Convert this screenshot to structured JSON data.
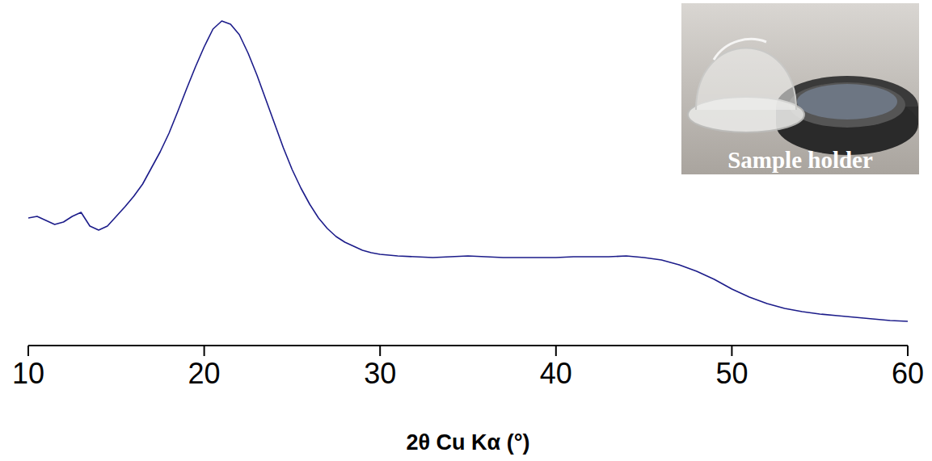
{
  "chart_data": {
    "type": "line",
    "xlabel": "2θ Cu Kα (°)",
    "annotations": [
      "Sample holder"
    ],
    "x": [
      10,
      10.5,
      11,
      11.5,
      12,
      12.5,
      13,
      13.5,
      14,
      14.5,
      15,
      15.5,
      16,
      16.5,
      17,
      17.5,
      18,
      18.5,
      19,
      19.5,
      20,
      20.5,
      21,
      21.5,
      22,
      22.5,
      23,
      23.5,
      24,
      24.5,
      25,
      25.5,
      26,
      26.5,
      27,
      27.5,
      28,
      28.5,
      29,
      29.5,
      30,
      31,
      32,
      33,
      34,
      35,
      36,
      37,
      38,
      39,
      40,
      41,
      42,
      43,
      44,
      45,
      46,
      47,
      48,
      49,
      50,
      51,
      52,
      53,
      54,
      55,
      56,
      57,
      58,
      59,
      60
    ],
    "series": [
      {
        "color": "#1c1c8a",
        "values": [
          158,
          160,
          155,
          150,
          153,
          160,
          165,
          148,
          143,
          148,
          160,
          172,
          185,
          200,
          220,
          240,
          263,
          290,
          318,
          345,
          370,
          392,
          402,
          398,
          385,
          362,
          335,
          305,
          275,
          245,
          218,
          195,
          175,
          158,
          145,
          135,
          128,
          123,
          118,
          115,
          113,
          111,
          110,
          109,
          110,
          111,
          110,
          109,
          109,
          109,
          109,
          110,
          110,
          110,
          111,
          109,
          106,
          100,
          92,
          82,
          70,
          60,
          52,
          46,
          42,
          39,
          37,
          35,
          33,
          31,
          30
        ]
      }
    ],
    "xlim": [
      10,
      60
    ],
    "xticks": [
      10,
      20,
      30,
      40,
      50,
      60
    ],
    "ylim": [
      0,
      415
    ],
    "tick_labels": "x",
    "grid": false
  }
}
